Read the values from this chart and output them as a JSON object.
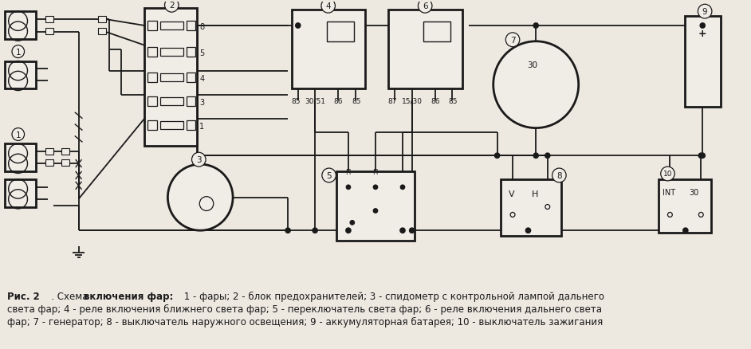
{
  "background_color": "#ede8e0",
  "line_color": "#1a1a1a",
  "white_fill": "#f0ece6",
  "fig_width": 9.42,
  "fig_height": 4.39,
  "dpi": 100,
  "caption_rис": "Рис. 2",
  "caption_dot": "   . Схема ",
  "caption_bold": "включения фар:",
  "caption_rest1": " 1 - фары; 2 - блок предохранителей; 3 - спидометр с контрольной лампой дальнего",
  "caption_line2": "света фар; 4 - реле включения ближнего света фар; 5 - переключатель света фар; 6 - реле включения дальнего света",
  "caption_line3": "фар; 7 - генератор; 8 - выключатель наружного освещения; 9 - аккумуляторная батарея; 10 - выключатель зажигания"
}
